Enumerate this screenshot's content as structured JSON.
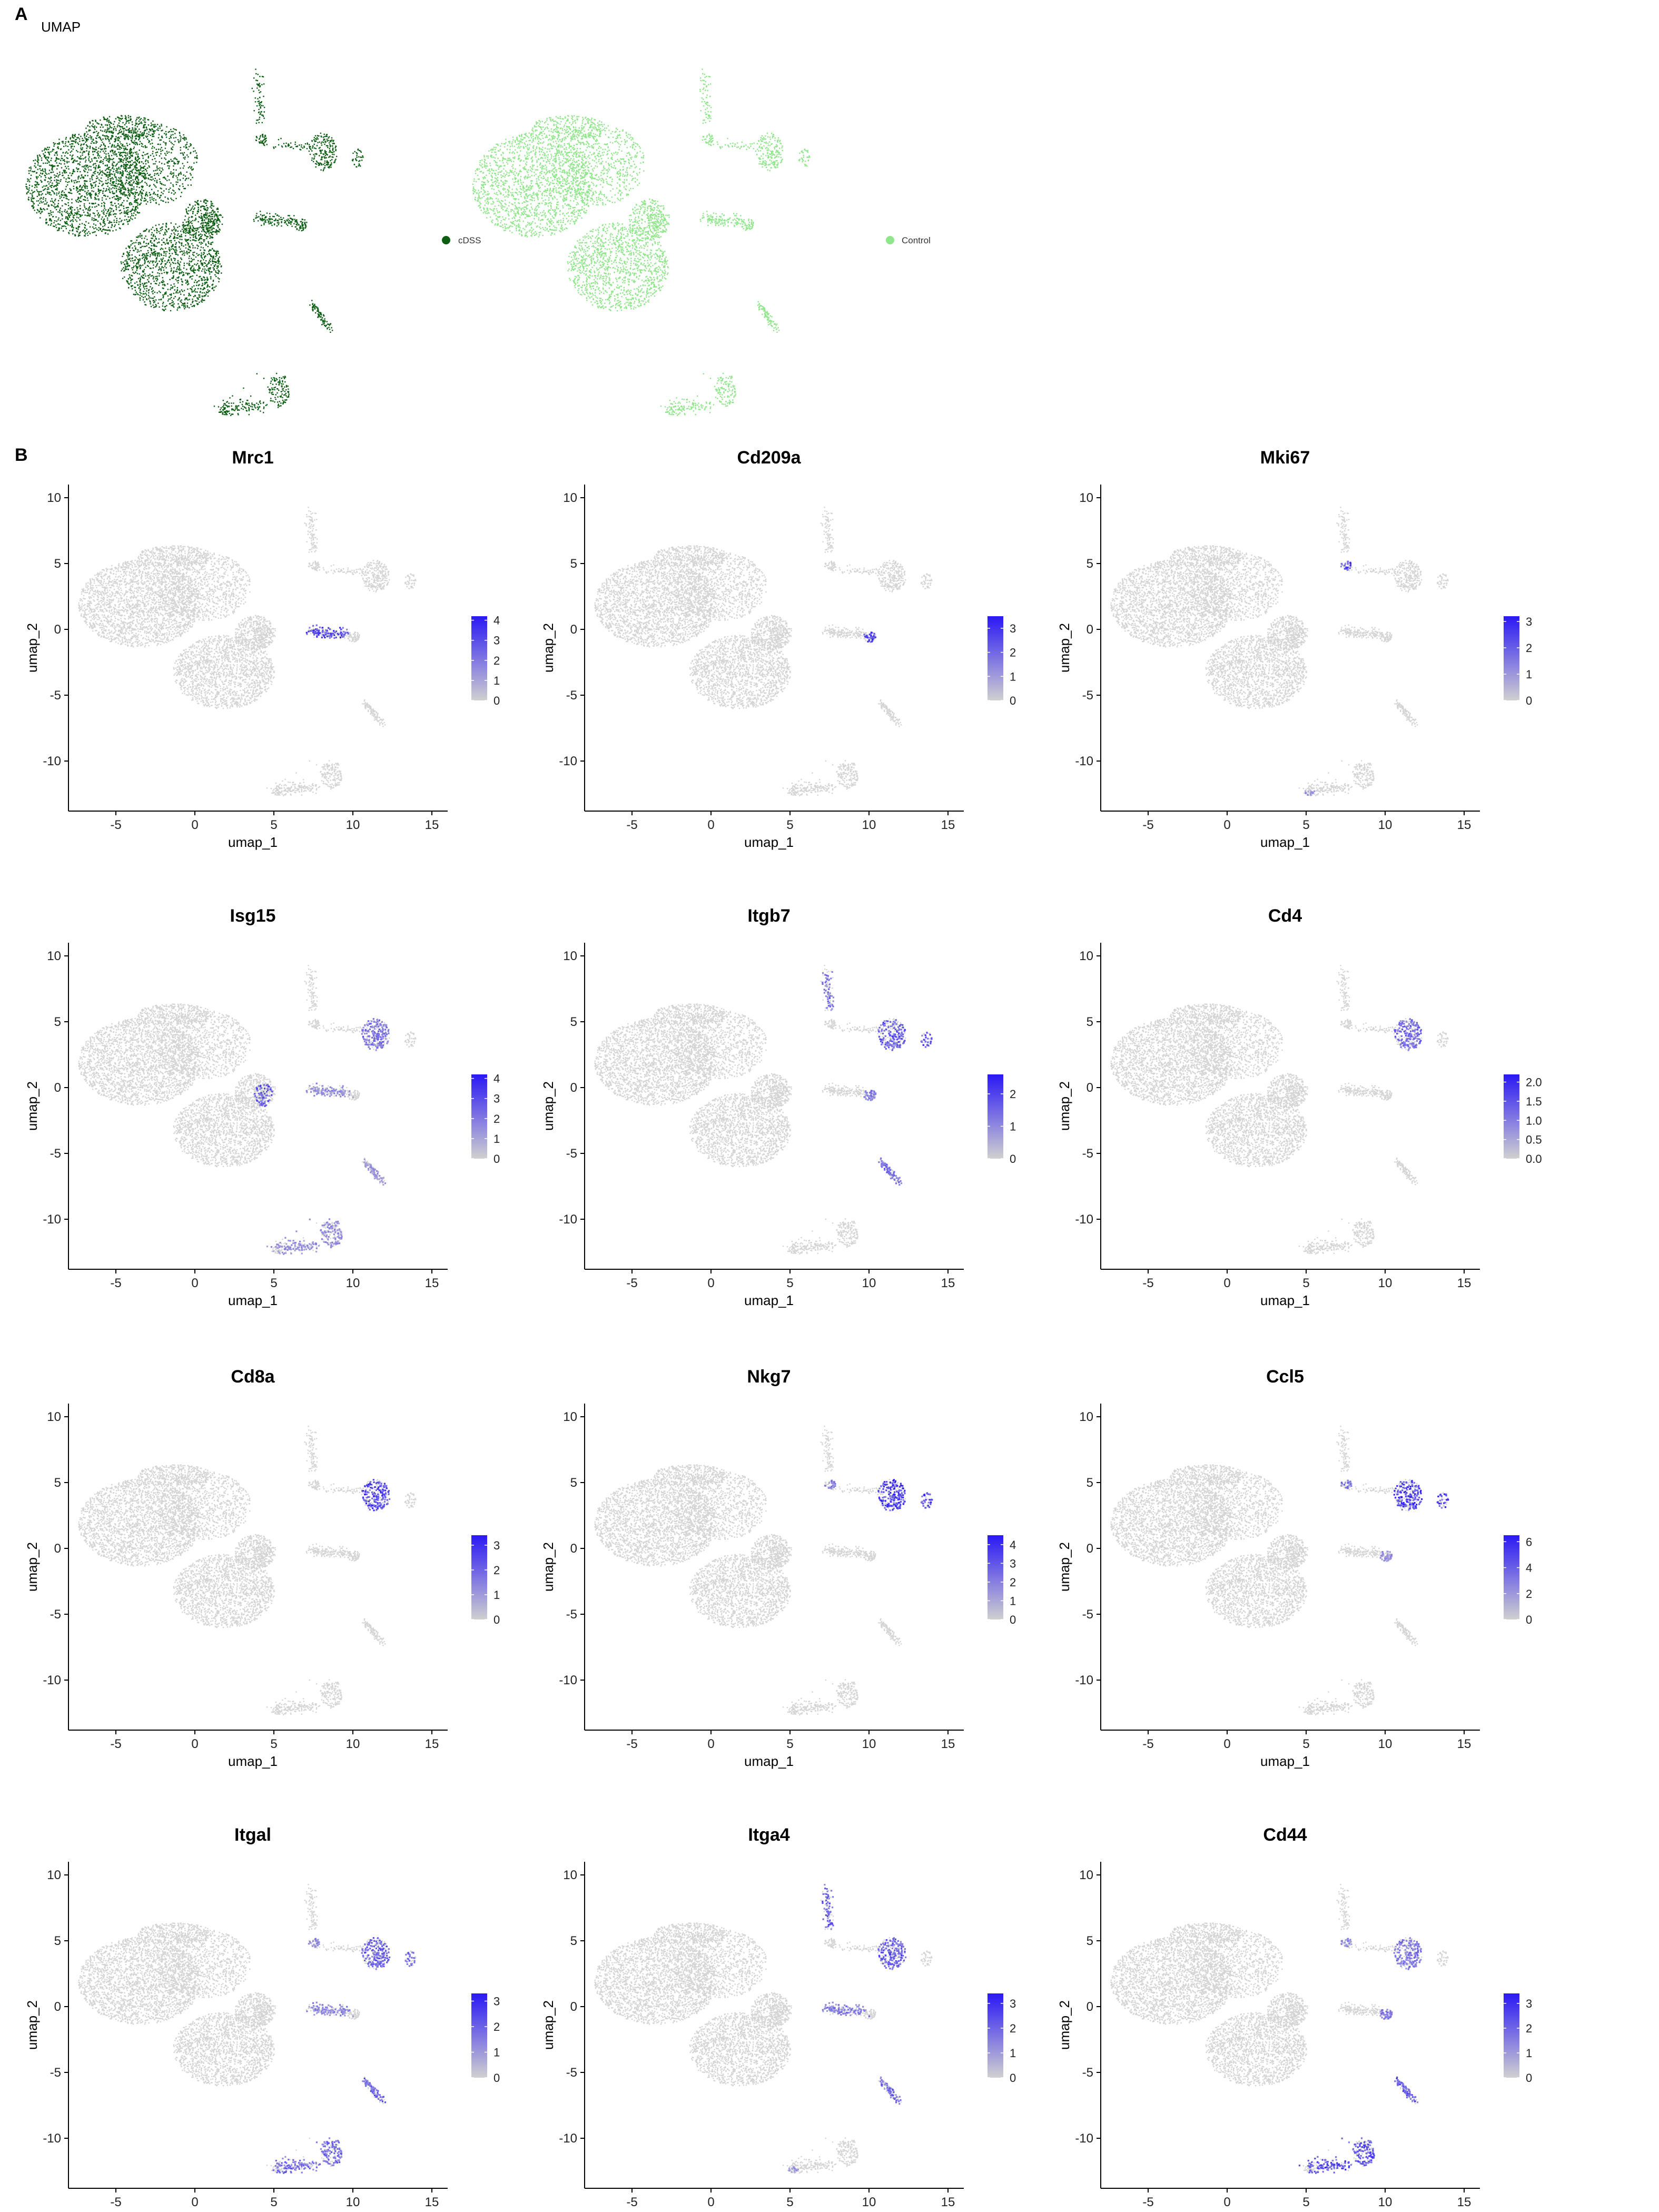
{
  "panelA": {
    "letter": "A",
    "title": "UMAP",
    "groups": [
      {
        "name": "cDSS",
        "color": "#0c5e12"
      },
      {
        "name": "Control",
        "color": "#90e68a"
      }
    ]
  },
  "panelB": {
    "letter": "B"
  },
  "colors": {
    "background_cell": "#d4d4d4",
    "low": "#d0d0d0",
    "high": "#2a18f5"
  },
  "chart_data": [
    {
      "type": "scatter",
      "title": "Mrc1",
      "xlabel": "umap_1",
      "ylabel": "umap_2",
      "xlim": [
        -8,
        16
      ],
      "ylim": [
        -13.8,
        11
      ],
      "xticks": [
        -5,
        0,
        5,
        10,
        15
      ],
      "yticks": [
        10,
        5,
        0,
        -5,
        -10
      ],
      "legend_ticks": [
        "4",
        "3",
        "2",
        "1",
        "0"
      ],
      "legend_max": 4.2,
      "expression": [
        {
          "cluster": "macrophage_arm",
          "intensity": 0.8
        }
      ]
    },
    {
      "type": "scatter",
      "title": "Cd209a",
      "xlabel": "umap_1",
      "ylabel": "umap_2",
      "xlim": [
        -8,
        16
      ],
      "ylim": [
        -13.8,
        11
      ],
      "xticks": [
        -5,
        0,
        5,
        10,
        15
      ],
      "yticks": [
        10,
        5,
        0,
        -5,
        -10
      ],
      "legend_ticks": [
        "3",
        "2",
        "1",
        "0"
      ],
      "legend_max": 3.5,
      "expression": [
        {
          "cluster": "macrophage_arm_tip",
          "intensity": 0.85
        }
      ]
    },
    {
      "type": "scatter",
      "title": "Mki67",
      "xlabel": "umap_1",
      "ylabel": "umap_2",
      "xlim": [
        -8,
        16
      ],
      "ylim": [
        -13.8,
        11
      ],
      "xticks": [
        -5,
        0,
        5,
        10,
        15
      ],
      "yticks": [
        10,
        5,
        0,
        -5,
        -10
      ],
      "legend_ticks": [
        "3",
        "2",
        "1",
        "0"
      ],
      "legend_max": 3.2,
      "expression": [
        {
          "cluster": "top_stem_node",
          "intensity": 0.75
        },
        {
          "cluster": "bottom_arc_tail",
          "intensity": 0.4
        }
      ]
    },
    {
      "type": "scatter",
      "title": "Isg15",
      "xlabel": "umap_1",
      "ylabel": "umap_2",
      "xlim": [
        -8,
        16
      ],
      "ylim": [
        -13.8,
        11
      ],
      "xticks": [
        -5,
        0,
        5,
        10,
        15
      ],
      "yticks": [
        10,
        5,
        0,
        -5,
        -10
      ],
      "legend_ticks": [
        "4",
        "3",
        "2",
        "1",
        "0"
      ],
      "legend_max": 4.2,
      "expression": [
        {
          "cluster": "main_right_edge",
          "intensity": 0.7
        },
        {
          "cluster": "tcell_cluster",
          "intensity": 0.55
        },
        {
          "cluster": "macrophage_arm",
          "intensity": 0.4
        },
        {
          "cluster": "bottom_arc",
          "intensity": 0.4
        },
        {
          "cluster": "diagonal_streak",
          "intensity": 0.35
        }
      ]
    },
    {
      "type": "scatter",
      "title": "Itgb7",
      "xlabel": "umap_1",
      "ylabel": "umap_2",
      "xlim": [
        -8,
        16
      ],
      "ylim": [
        -13.8,
        11
      ],
      "xticks": [
        -5,
        0,
        5,
        10,
        15
      ],
      "yticks": [
        10,
        5,
        0,
        -5,
        -10
      ],
      "legend_ticks": [
        "2",
        "1",
        "0"
      ],
      "legend_max": 2.6,
      "expression": [
        {
          "cluster": "tcell_cluster",
          "intensity": 0.7
        },
        {
          "cluster": "top_stem",
          "intensity": 0.55
        },
        {
          "cluster": "diagonal_streak",
          "intensity": 0.6
        },
        {
          "cluster": "macrophage_arm_tip",
          "intensity": 0.55
        },
        {
          "cluster": "right_tip",
          "intensity": 0.7
        }
      ]
    },
    {
      "type": "scatter",
      "title": "Cd4",
      "xlabel": "umap_1",
      "ylabel": "umap_2",
      "xlim": [
        -8,
        16
      ],
      "ylim": [
        -13.8,
        11
      ],
      "xticks": [
        -5,
        0,
        5,
        10,
        15
      ],
      "yticks": [
        10,
        5,
        0,
        -5,
        -10
      ],
      "legend_ticks": [
        "2.0",
        "1.5",
        "1.0",
        "0.5",
        "0.0"
      ],
      "legend_max": 2.2,
      "expression": [
        {
          "cluster": "tcell_cluster",
          "intensity": 0.6
        }
      ]
    },
    {
      "type": "scatter",
      "title": "Cd8a",
      "xlabel": "umap_1",
      "ylabel": "umap_2",
      "xlim": [
        -8,
        16
      ],
      "ylim": [
        -13.8,
        11
      ],
      "xticks": [
        -5,
        0,
        5,
        10,
        15
      ],
      "yticks": [
        10,
        5,
        0,
        -5,
        -10
      ],
      "legend_ticks": [
        "3",
        "2",
        "1",
        "0"
      ],
      "legend_max": 3.4,
      "expression": [
        {
          "cluster": "tcell_cluster",
          "intensity": 0.8
        }
      ]
    },
    {
      "type": "scatter",
      "title": "Nkg7",
      "xlabel": "umap_1",
      "ylabel": "umap_2",
      "xlim": [
        -8,
        16
      ],
      "ylim": [
        -13.8,
        11
      ],
      "xticks": [
        -5,
        0,
        5,
        10,
        15
      ],
      "yticks": [
        10,
        5,
        0,
        -5,
        -10
      ],
      "legend_ticks": [
        "4",
        "3",
        "2",
        "1",
        "0"
      ],
      "legend_max": 4.5,
      "expression": [
        {
          "cluster": "tcell_cluster",
          "intensity": 0.85
        },
        {
          "cluster": "right_tip",
          "intensity": 0.8
        },
        {
          "cluster": "top_stem_node",
          "intensity": 0.5
        }
      ]
    },
    {
      "type": "scatter",
      "title": "Ccl5",
      "xlabel": "umap_1",
      "ylabel": "umap_2",
      "xlim": [
        -8,
        16
      ],
      "ylim": [
        -13.8,
        11
      ],
      "xticks": [
        -5,
        0,
        5,
        10,
        15
      ],
      "yticks": [
        10,
        5,
        0,
        -5,
        -10
      ],
      "legend_ticks": [
        "6",
        "4",
        "2",
        "0"
      ],
      "legend_max": 6.5,
      "expression": [
        {
          "cluster": "tcell_cluster",
          "intensity": 0.9
        },
        {
          "cluster": "right_tip",
          "intensity": 0.85
        },
        {
          "cluster": "top_stem_node",
          "intensity": 0.55
        },
        {
          "cluster": "macrophage_arm_tip",
          "intensity": 0.4
        }
      ]
    },
    {
      "type": "scatter",
      "title": "Itgal",
      "xlabel": "umap_1",
      "ylabel": "umap_2",
      "xlim": [
        -8,
        16
      ],
      "ylim": [
        -13.8,
        11
      ],
      "xticks": [
        -5,
        0,
        5,
        10,
        15
      ],
      "yticks": [
        10,
        5,
        0,
        -5,
        -10
      ],
      "legend_ticks": [
        "3",
        "2",
        "1",
        "0"
      ],
      "legend_max": 3.3,
      "expression": [
        {
          "cluster": "tcell_cluster",
          "intensity": 0.7
        },
        {
          "cluster": "bottom_arc",
          "intensity": 0.6
        },
        {
          "cluster": "diagonal_streak",
          "intensity": 0.65
        },
        {
          "cluster": "macrophage_arm",
          "intensity": 0.45
        },
        {
          "cluster": "top_stem_node",
          "intensity": 0.45
        },
        {
          "cluster": "right_tip",
          "intensity": 0.6
        }
      ]
    },
    {
      "type": "scatter",
      "title": "Itga4",
      "xlabel": "umap_1",
      "ylabel": "umap_2",
      "xlim": [
        -8,
        16
      ],
      "ylim": [
        -13.8,
        11
      ],
      "xticks": [
        -5,
        0,
        5,
        10,
        15
      ],
      "yticks": [
        10,
        5,
        0,
        -5,
        -10
      ],
      "legend_ticks": [
        "3",
        "2",
        "1",
        "0"
      ],
      "legend_max": 3.4,
      "expression": [
        {
          "cluster": "tcell_cluster",
          "intensity": 0.7
        },
        {
          "cluster": "top_stem",
          "intensity": 0.65
        },
        {
          "cluster": "macrophage_arm",
          "intensity": 0.5
        },
        {
          "cluster": "diagonal_streak",
          "intensity": 0.6
        },
        {
          "cluster": "bottom_arc_tail",
          "intensity": 0.4
        }
      ]
    },
    {
      "type": "scatter",
      "title": "Cd44",
      "xlabel": "umap_1",
      "ylabel": "umap_2",
      "xlim": [
        -8,
        16
      ],
      "ylim": [
        -13.8,
        11
      ],
      "xticks": [
        -5,
        0,
        5,
        10,
        15
      ],
      "yticks": [
        10,
        5,
        0,
        -5,
        -10
      ],
      "legend_ticks": [
        "3",
        "2",
        "1",
        "0"
      ],
      "legend_max": 3.4,
      "expression": [
        {
          "cluster": "bottom_arc",
          "intensity": 0.8
        },
        {
          "cluster": "diagonal_streak",
          "intensity": 0.75
        },
        {
          "cluster": "tcell_cluster",
          "intensity": 0.55
        },
        {
          "cluster": "macrophage_arm_tip",
          "intensity": 0.5
        },
        {
          "cluster": "top_stem_node",
          "intensity": 0.45
        }
      ]
    }
  ]
}
